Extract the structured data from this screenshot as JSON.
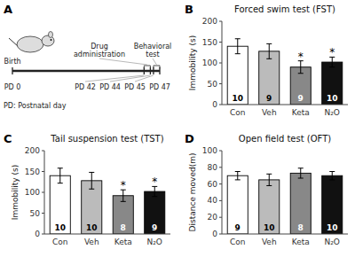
{
  "chart_data": [
    {
      "type": "timeline",
      "panel_label": "A",
      "xlim": [
        0,
        47
      ],
      "xticks": [
        {
          "value": 0,
          "label": "PD 0"
        },
        {
          "value": 42,
          "label": "PD 42"
        },
        {
          "value": 44,
          "label": "PD 44"
        },
        {
          "value": 45,
          "label": "PD 45"
        },
        {
          "value": 47,
          "label": "PD 47"
        }
      ],
      "annotations": [
        {
          "text": "Birth",
          "x": [
            0
          ]
        },
        {
          "text": "Drug\nadministration",
          "x": [
            42,
            44
          ]
        },
        {
          "text": "Behavioral\ntest",
          "x": [
            45,
            47
          ]
        }
      ],
      "caption": "PD: Postnatal day"
    },
    {
      "type": "bar",
      "panel_label": "B",
      "title": "Forced swim test (FST)",
      "ylabel": "Immobility (s)",
      "categories": [
        "Con",
        "Veh",
        "Keta",
        "N₂O"
      ],
      "values": [
        140,
        128,
        90,
        102
      ],
      "errors": [
        18,
        18,
        15,
        12
      ],
      "ns": [
        10,
        9,
        9,
        10
      ],
      "colors": [
        "#ffffff",
        "#bbbbbb",
        "#888888",
        "#111111"
      ],
      "edge_colors": [
        "#000000",
        "#000000",
        "#000000",
        "#000000"
      ],
      "sig": [
        false,
        false,
        true,
        true
      ],
      "sig_label": "*",
      "ylim": [
        0,
        200
      ],
      "yticks": [
        0,
        50,
        100,
        150,
        200
      ]
    },
    {
      "type": "bar",
      "panel_label": "C",
      "title": "Tail suspension test (TST)",
      "ylabel": "Immobility (s)",
      "categories": [
        "Con",
        "Veh",
        "Keta",
        "N₂O"
      ],
      "values": [
        140,
        128,
        92,
        102
      ],
      "errors": [
        18,
        20,
        14,
        12
      ],
      "ns": [
        10,
        10,
        8,
        9
      ],
      "colors": [
        "#ffffff",
        "#bbbbbb",
        "#888888",
        "#111111"
      ],
      "edge_colors": [
        "#000000",
        "#000000",
        "#000000",
        "#000000"
      ],
      "sig": [
        false,
        false,
        true,
        true
      ],
      "sig_label": "*",
      "ylim": [
        0,
        200
      ],
      "yticks": [
        0,
        50,
        100,
        150,
        200
      ]
    },
    {
      "type": "bar",
      "panel_label": "D",
      "title": "Open field test (OFT)",
      "ylabel": "Distance moved(m)",
      "categories": [
        "Con",
        "Veh",
        "Keta",
        "N₂O"
      ],
      "values": [
        70,
        65,
        73,
        70
      ],
      "errors": [
        5,
        7,
        6,
        5
      ],
      "ns": [
        9,
        10,
        8,
        10
      ],
      "colors": [
        "#ffffff",
        "#bbbbbb",
        "#888888",
        "#111111"
      ],
      "edge_colors": [
        "#000000",
        "#000000",
        "#000000",
        "#000000"
      ],
      "sig": [
        false,
        false,
        false,
        false
      ],
      "sig_label": "*",
      "ylim": [
        0,
        100
      ],
      "yticks": [
        0,
        20,
        40,
        60,
        80,
        100
      ]
    }
  ]
}
